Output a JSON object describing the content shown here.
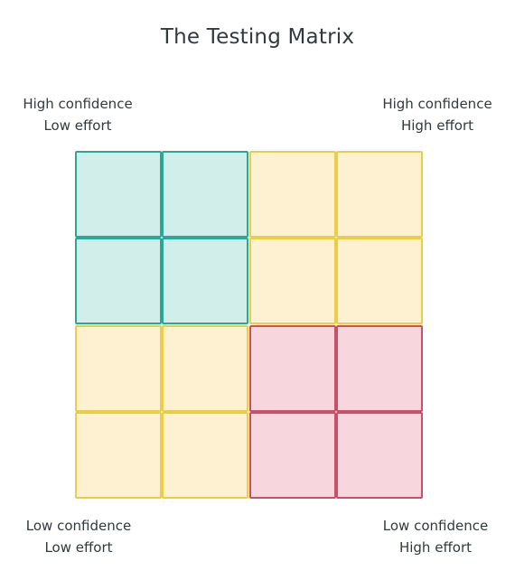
{
  "title": "The Testing Matrix",
  "corners": {
    "top_left": {
      "line1": "High confidence",
      "line2": "Low effort"
    },
    "top_right": {
      "line1": "High confidence",
      "line2": "High effort"
    },
    "bottom_left": {
      "line1": "Low confidence",
      "line2": "Low effort"
    },
    "bottom_right": {
      "line1": "Low confidence",
      "line2": "High effort"
    }
  },
  "colors": {
    "green": {
      "fill": "#d2eeea",
      "stroke": "#2aa79b"
    },
    "yellow": {
      "fill": "#fdf1d2",
      "stroke": "#eccd47"
    },
    "red": {
      "fill": "#f7d7dd",
      "stroke": "#cb4f66"
    }
  },
  "grid": [
    [
      "green",
      "green",
      "yellow",
      "yellow"
    ],
    [
      "green",
      "green",
      "yellow",
      "yellow"
    ],
    [
      "yellow",
      "yellow",
      "red",
      "red"
    ],
    [
      "yellow",
      "yellow",
      "red",
      "red"
    ]
  ]
}
